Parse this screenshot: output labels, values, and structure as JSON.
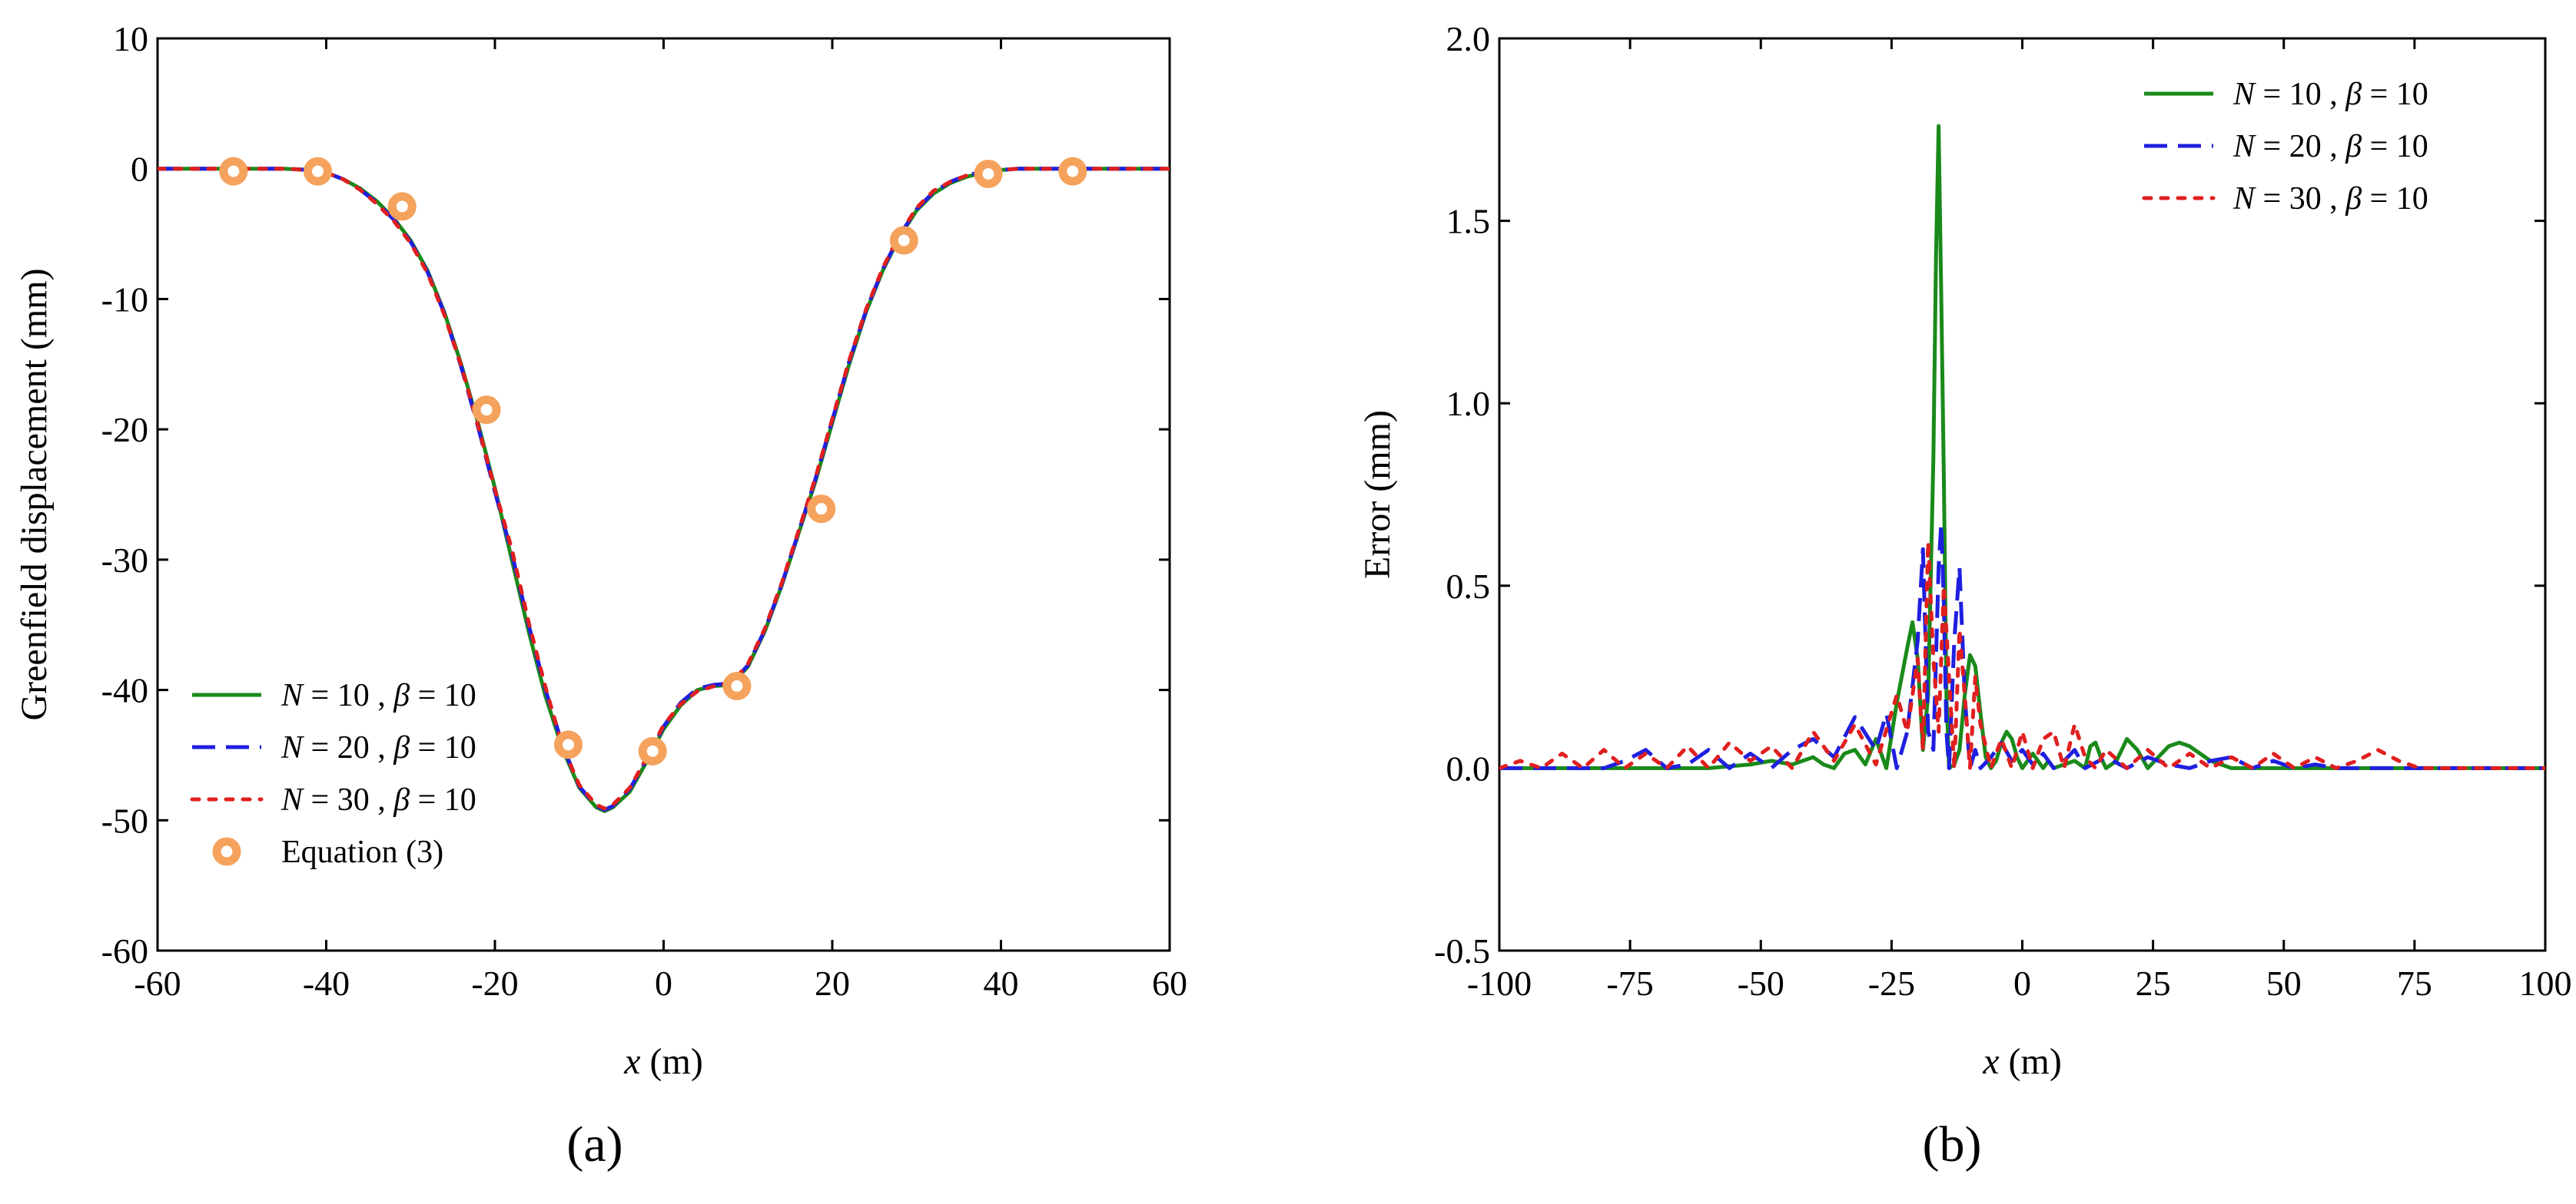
{
  "figure": {
    "panel_labels": [
      "(a)",
      "(b)"
    ]
  },
  "chart_data": [
    {
      "panel": "(a)",
      "type": "line",
      "title": "",
      "xlabel_var": "x",
      "xlabel_unit": " (m)",
      "ylabel": "Greenfield displacement (mm)",
      "xlim": [
        -60,
        60
      ],
      "ylim": [
        -60,
        10
      ],
      "xticks": [
        -60,
        -40,
        -20,
        0,
        20,
        40,
        60
      ],
      "yticks": [
        -60,
        -50,
        -40,
        -30,
        -20,
        -10,
        0,
        10
      ],
      "xtick_labels": [
        "-60",
        "-40",
        "-20",
        "0",
        "20",
        "40",
        "60"
      ],
      "ytick_labels": [
        "-60",
        "-50",
        "-40",
        "-30",
        "-20",
        "-10",
        "0",
        "10"
      ],
      "grid": false,
      "legend_position": "bottom-left",
      "series": [
        {
          "name": "N = 10 , β = 10",
          "legend_var1": "N",
          "legend_mid": " = 10 , ",
          "legend_var2": "β",
          "legend_end": " = 10",
          "style": "solid",
          "color": "#1a8a1a",
          "x": [
            -60,
            -50,
            -45,
            -42,
            -40,
            -38,
            -36,
            -34,
            -32,
            -30,
            -28,
            -26,
            -24,
            -22,
            -20,
            -18,
            -16,
            -14,
            -12,
            -10,
            -8,
            -7,
            -6,
            -4,
            -2,
            0,
            2,
            4,
            6,
            8,
            10,
            12,
            14,
            16,
            18,
            20,
            22,
            24,
            26,
            28,
            30,
            32,
            34,
            36,
            38,
            40,
            42,
            45,
            50,
            60
          ],
          "y": [
            0,
            0,
            0,
            -0.1,
            -0.3,
            -0.8,
            -1.5,
            -2.5,
            -3.8,
            -5.5,
            -7.8,
            -11,
            -15,
            -19.5,
            -24.5,
            -30,
            -35.5,
            -40.5,
            -44.5,
            -47.5,
            -49,
            -49.3,
            -49,
            -47.8,
            -45.5,
            -43,
            -41.2,
            -40,
            -39.7,
            -39.6,
            -38.2,
            -35.5,
            -32,
            -28,
            -24,
            -19.5,
            -15,
            -11,
            -7.8,
            -5.2,
            -3.2,
            -1.9,
            -1.1,
            -0.6,
            -0.3,
            -0.1,
            0,
            0,
            0,
            0
          ]
        },
        {
          "name": "N = 20 , β = 10",
          "legend_var1": "N",
          "legend_mid": " = 20 , ",
          "legend_var2": "β",
          "legend_end": " = 10",
          "style": "dashed",
          "color": "#1f1fe0",
          "x": [
            -60,
            -50,
            -45,
            -42,
            -40,
            -38,
            -36,
            -34,
            -32,
            -30,
            -28,
            -26,
            -24,
            -22,
            -20,
            -18,
            -16,
            -14,
            -12,
            -10,
            -8,
            -7,
            -6,
            -4,
            -2,
            0,
            2,
            4,
            6,
            8,
            10,
            12,
            14,
            16,
            18,
            20,
            22,
            24,
            26,
            28,
            30,
            32,
            34,
            36,
            38,
            40,
            42,
            45,
            50,
            60
          ],
          "y": [
            0,
            0,
            0,
            -0.1,
            -0.3,
            -0.8,
            -1.6,
            -2.6,
            -3.9,
            -5.6,
            -7.9,
            -11.1,
            -15.2,
            -19.8,
            -24.8,
            -29.5,
            -35,
            -40,
            -44.2,
            -47.4,
            -48.9,
            -49.2,
            -48.9,
            -47.6,
            -45.3,
            -42.8,
            -41,
            -39.9,
            -39.6,
            -39.5,
            -38.1,
            -35.4,
            -31.9,
            -27.9,
            -23.8,
            -19.3,
            -14.8,
            -10.9,
            -7.7,
            -5.1,
            -3.1,
            -1.8,
            -1,
            -0.5,
            -0.2,
            -0.1,
            0,
            0,
            0,
            0
          ]
        },
        {
          "name": "N = 30 , β = 10",
          "legend_var1": "N",
          "legend_mid": " = 30 , ",
          "legend_var2": "β",
          "legend_end": " = 10",
          "style": "dotted",
          "color": "#e01f1f",
          "x": [
            -60,
            -50,
            -45,
            -42,
            -40,
            -38,
            -36,
            -34,
            -32,
            -30,
            -28,
            -26,
            -24,
            -22,
            -20,
            -18,
            -16,
            -14,
            -12,
            -10,
            -8,
            -7,
            -6,
            -4,
            -2,
            0,
            2,
            4,
            6,
            8,
            10,
            12,
            14,
            16,
            18,
            20,
            22,
            24,
            26,
            28,
            30,
            32,
            34,
            36,
            38,
            40,
            42,
            45,
            50,
            60
          ],
          "y": [
            0,
            0,
            0,
            -0.1,
            -0.3,
            -0.8,
            -1.6,
            -2.7,
            -4,
            -5.7,
            -8,
            -11.2,
            -15.1,
            -19.7,
            -24.6,
            -29.2,
            -34.8,
            -39.8,
            -44.3,
            -47.3,
            -48.8,
            -49.1,
            -48.8,
            -47.5,
            -45.2,
            -42.7,
            -41.1,
            -40.1,
            -39.7,
            -39.5,
            -38,
            -35.3,
            -31.8,
            -27.8,
            -23.7,
            -19.2,
            -14.7,
            -10.8,
            -7.6,
            -5,
            -3,
            -1.7,
            -1,
            -0.5,
            -0.2,
            -0.1,
            0,
            0,
            0,
            0
          ]
        },
        {
          "name": "Equation (3)",
          "style": "marker",
          "color": "#f5a25d",
          "x": [
            -51,
            -41,
            -31,
            -21,
            -11.3,
            -1.3,
            8.7,
            18.7,
            28.5,
            38.5,
            48.5
          ],
          "y": [
            -0.2,
            -0.2,
            -2.9,
            -18.5,
            -44.2,
            -44.7,
            -39.7,
            -26.1,
            -5.5,
            -0.4,
            -0.2
          ]
        }
      ]
    },
    {
      "panel": "(b)",
      "type": "line",
      "title": "",
      "xlabel_var": "x",
      "xlabel_unit": " (m)",
      "ylabel": "Error (mm)",
      "xlim": [
        -100,
        100
      ],
      "ylim": [
        -0.5,
        2.0
      ],
      "xticks": [
        -100,
        -75,
        -50,
        -25,
        0,
        25,
        50,
        75,
        100
      ],
      "yticks": [
        -0.5,
        0.0,
        0.5,
        1.0,
        1.5,
        2.0
      ],
      "xtick_labels": [
        "-100",
        "-75",
        "-50",
        "-25",
        "0",
        "25",
        "50",
        "75",
        "100"
      ],
      "ytick_labels": [
        "-0.5",
        "0.0",
        "0.5",
        "1.0",
        "1.5",
        "2.0"
      ],
      "grid": false,
      "legend_position": "top-right",
      "series": [
        {
          "name": "N = 10 , β = 10",
          "legend_var1": "N",
          "legend_mid": " = 10 , ",
          "legend_var2": "β",
          "legend_end": " = 10",
          "style": "solid",
          "color": "#1a8a1a",
          "x": [
            -100,
            -60,
            -52,
            -48,
            -44,
            -40,
            -38,
            -36,
            -34,
            -32,
            -30,
            -28,
            -26,
            -24,
            -22,
            -21,
            -20,
            -19,
            -18,
            -17,
            -16.5,
            -16,
            -15.5,
            -15,
            -14.5,
            -14,
            -13,
            -12,
            -11,
            -10,
            -9,
            -8,
            -7,
            -6,
            -5,
            -4,
            -3,
            -2,
            -1,
            0,
            1,
            2,
            3,
            4,
            5,
            6,
            8,
            10,
            12,
            13,
            14,
            15,
            16,
            18,
            20,
            22,
            24,
            26,
            28,
            30,
            32,
            34,
            36,
            40,
            45,
            50,
            60,
            100
          ],
          "y": [
            0,
            0,
            0.01,
            0.02,
            0.01,
            0.03,
            0.01,
            0.0,
            0.04,
            0.05,
            0.01,
            0.08,
            0.0,
            0.18,
            0.33,
            0.4,
            0.3,
            0.05,
            0.2,
            0.85,
            1.4,
            1.76,
            1.3,
            0.8,
            0.2,
            0.0,
            0.01,
            0.05,
            0.2,
            0.31,
            0.28,
            0.15,
            0.03,
            0.0,
            0.02,
            0.07,
            0.1,
            0.08,
            0.03,
            0.0,
            0.02,
            0.04,
            0.02,
            0.0,
            0.02,
            0.0,
            0.01,
            0.02,
            0.0,
            0.06,
            0.07,
            0.03,
            0.0,
            0.02,
            0.08,
            0.05,
            0.0,
            0.03,
            0.06,
            0.07,
            0.06,
            0.04,
            0.02,
            0.0,
            0.0,
            0.0,
            0.0,
            0.0
          ]
        },
        {
          "name": "N = 20 , β = 10",
          "legend_var1": "N",
          "legend_mid": " = 20 , ",
          "legend_var2": "β",
          "legend_end": " = 10",
          "style": "dashed",
          "color": "#1f1fe0",
          "x": [
            -100,
            -80,
            -76,
            -72,
            -68,
            -64,
            -60,
            -56,
            -52,
            -48,
            -44,
            -40,
            -36,
            -32,
            -28,
            -26,
            -24,
            -22,
            -20,
            -19,
            -18,
            -17,
            -16,
            -15.5,
            -15,
            -14.5,
            -14,
            -13,
            -12,
            -11,
            -10,
            -9,
            -8,
            -6,
            -4,
            -2,
            0,
            2,
            4,
            6,
            8,
            10,
            12,
            16,
            20,
            24,
            28,
            32,
            36,
            40,
            44,
            48,
            52,
            56,
            60,
            64,
            100
          ],
          "y": [
            0,
            0,
            0.02,
            0.05,
            0.0,
            0.01,
            0.05,
            0.0,
            0.04,
            0.0,
            0.05,
            0.08,
            0.03,
            0.14,
            0.05,
            0.15,
            0.0,
            0.1,
            0.35,
            0.6,
            0.1,
            0.05,
            0.55,
            0.67,
            0.45,
            0.1,
            0.0,
            0.35,
            0.55,
            0.2,
            0.0,
            0.05,
            0.0,
            0.03,
            0.07,
            0.02,
            0.05,
            0.01,
            0.04,
            0.0,
            0.02,
            0.05,
            0.0,
            0.03,
            0.0,
            0.03,
            0.01,
            0.0,
            0.02,
            0.03,
            0.0,
            0.02,
            0.0,
            0.01,
            0.0,
            0.0,
            0
          ]
        },
        {
          "name": "N = 30 , β = 10",
          "legend_var1": "N",
          "legend_mid": " = 30 , ",
          "legend_var2": "β",
          "legend_end": " = 10",
          "style": "dotted",
          "color": "#e01f1f",
          "x": [
            -100,
            -96,
            -92,
            -88,
            -84,
            -80,
            -76,
            -72,
            -68,
            -64,
            -60,
            -56,
            -52,
            -48,
            -44,
            -40,
            -36,
            -32,
            -28,
            -24,
            -22,
            -20,
            -19,
            -18,
            -17,
            -16,
            -15,
            -14,
            -13,
            -12,
            -11,
            -10,
            -9,
            -8,
            -6,
            -4,
            -2,
            0,
            2,
            4,
            6,
            8,
            10,
            12,
            14,
            16,
            20,
            24,
            28,
            32,
            36,
            40,
            44,
            48,
            52,
            56,
            60,
            64,
            68,
            72,
            76,
            100
          ],
          "y": [
            0,
            0.02,
            0.0,
            0.04,
            0.0,
            0.05,
            0.0,
            0.04,
            0.0,
            0.06,
            0.0,
            0.07,
            0.02,
            0.06,
            0.0,
            0.1,
            0.02,
            0.12,
            0.01,
            0.2,
            0.1,
            0.3,
            0.05,
            0.62,
            0.3,
            0.1,
            0.5,
            0.25,
            0.0,
            0.38,
            0.2,
            0.0,
            0.25,
            0.12,
            0.0,
            0.08,
            0.0,
            0.1,
            0.0,
            0.08,
            0.1,
            0.0,
            0.12,
            0.03,
            0.0,
            0.05,
            0.0,
            0.05,
            0.0,
            0.04,
            0.0,
            0.03,
            0.0,
            0.04,
            0.0,
            0.03,
            0.0,
            0.02,
            0.05,
            0.02,
            0.0,
            0
          ]
        }
      ]
    }
  ]
}
